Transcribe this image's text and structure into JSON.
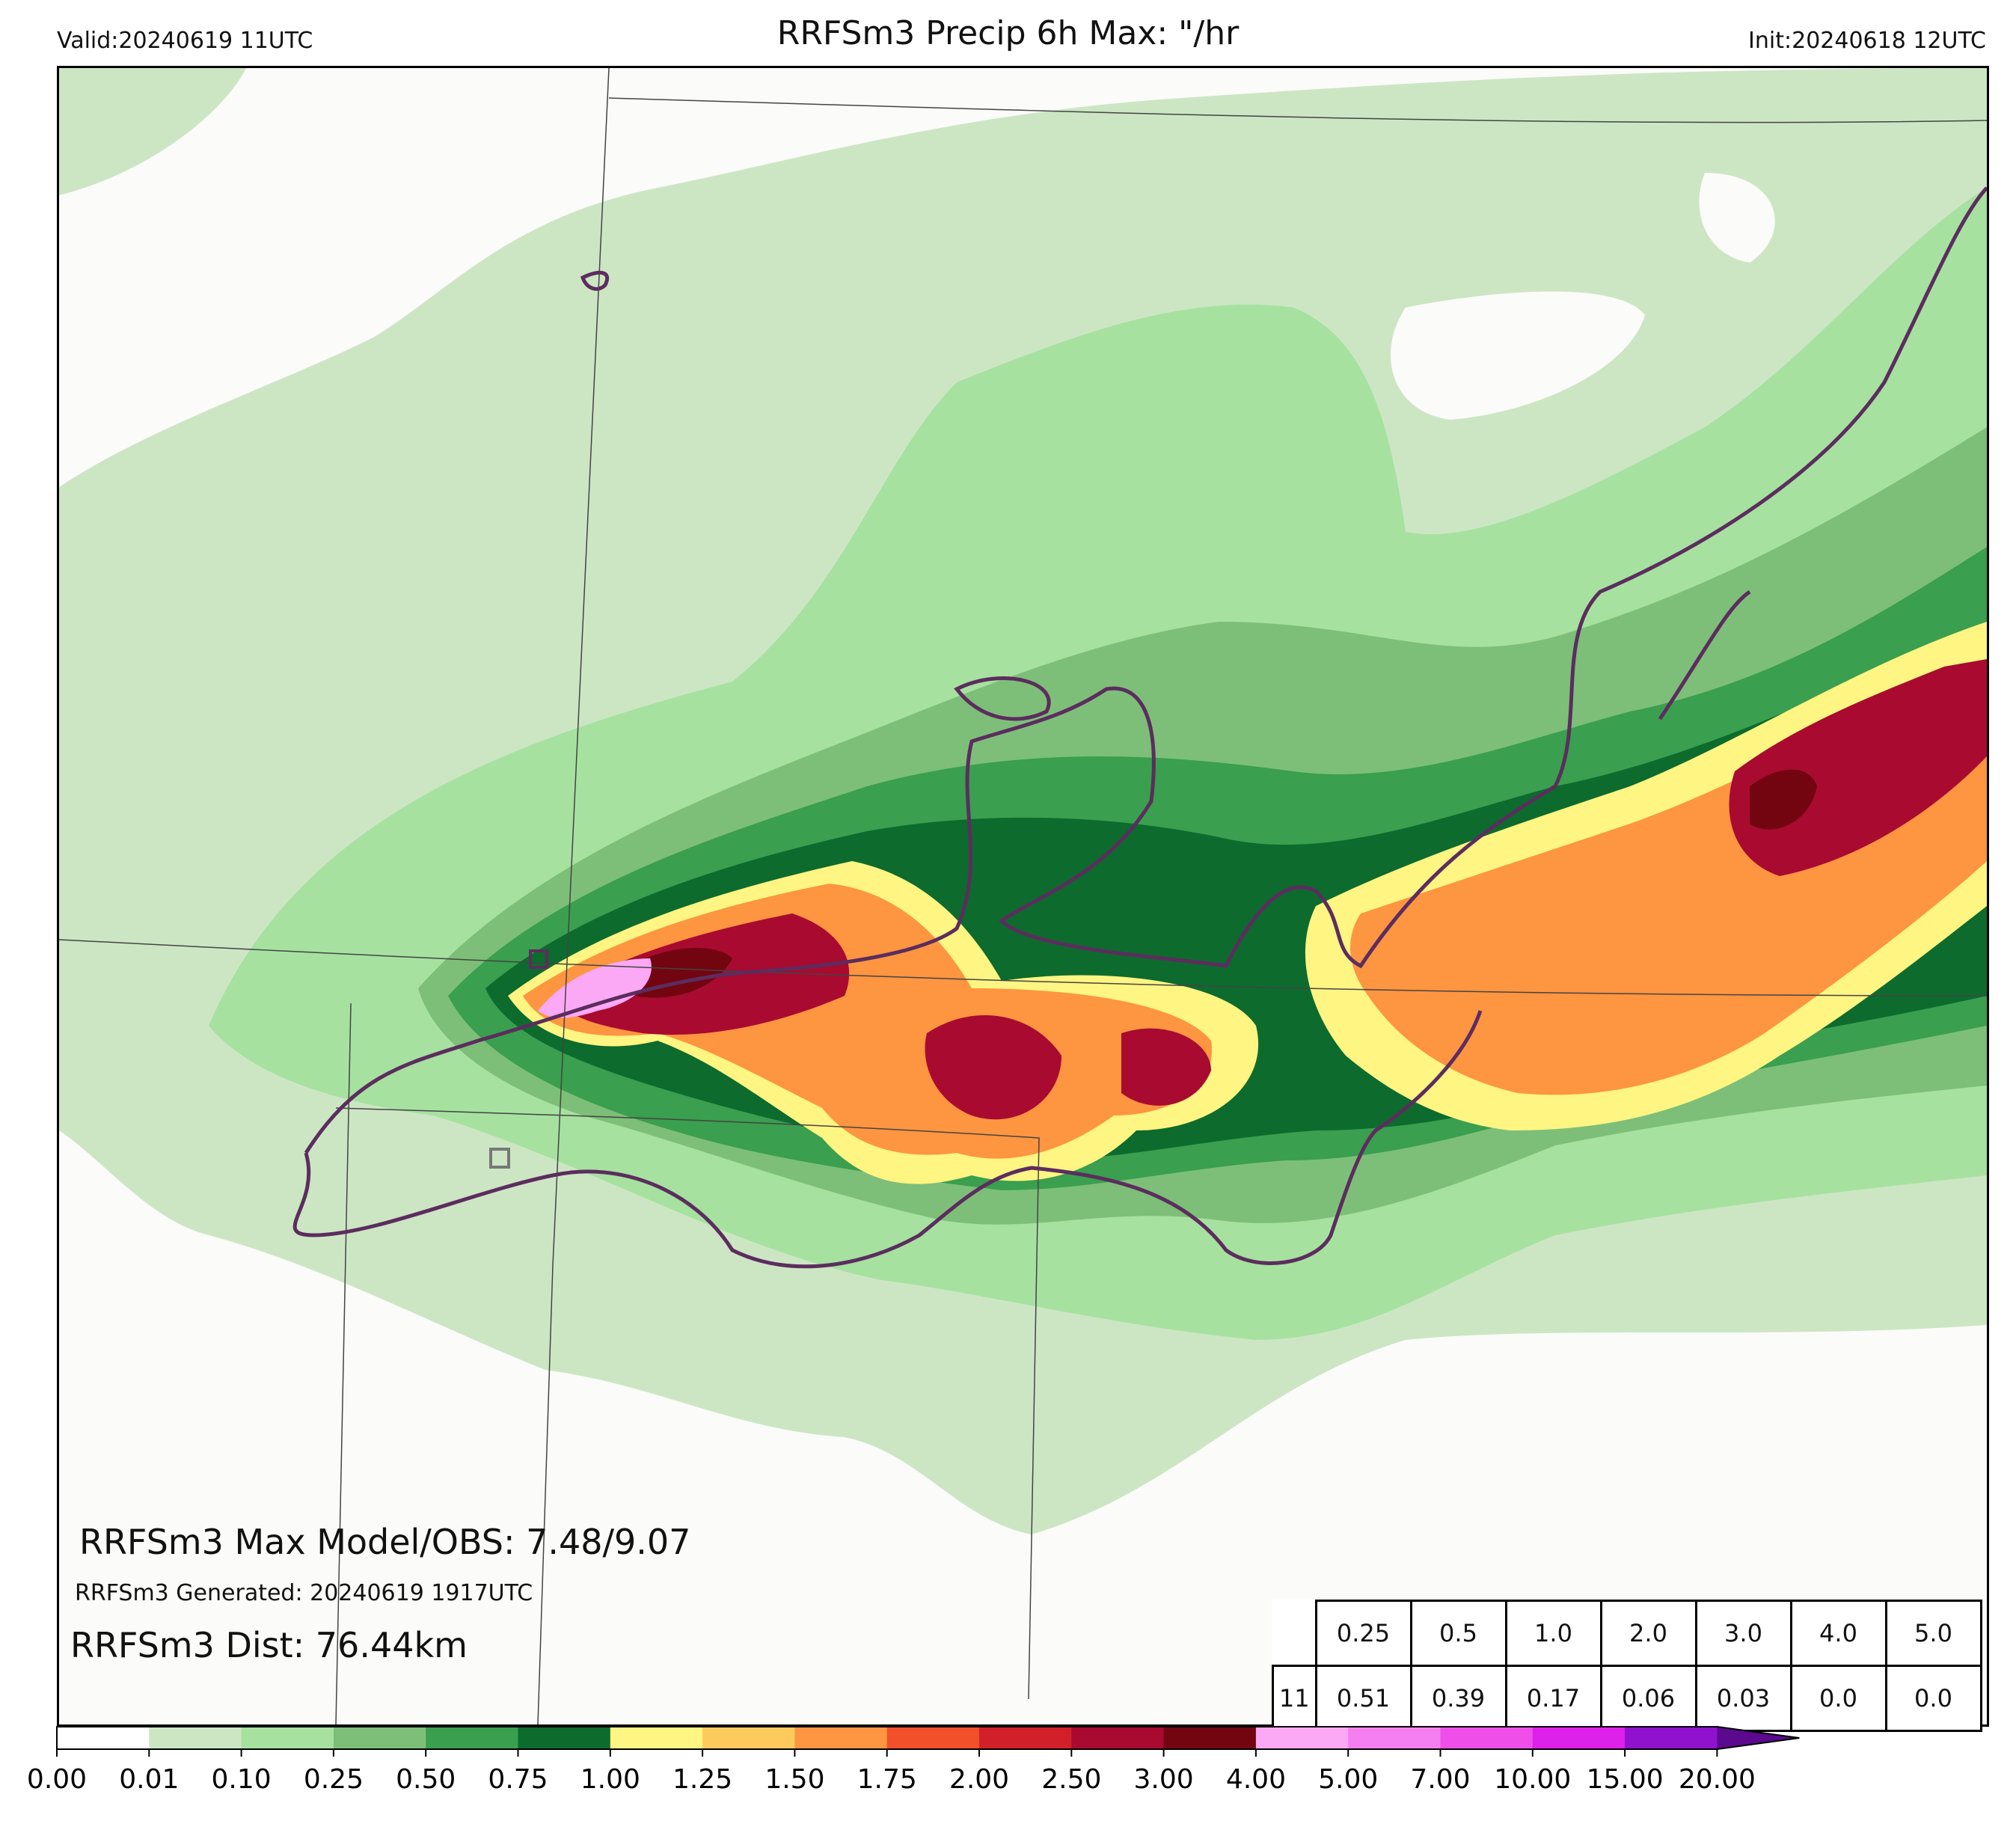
{
  "header": {
    "title": "RRFSm3 Precip 6h Max: \"/hr",
    "valid": "Valid:20240619 11UTC",
    "init": "Init:20240618 12UTC"
  },
  "annotations": {
    "max_model_obs": "RRFSm3 Max Model/OBS: 7.48/9.07",
    "generated": "RRFSm3 Generated: 20240619 1917UTC",
    "dist": "RRFSm3 Dist: 76.44km"
  },
  "stats_table": {
    "thresholds": [
      "0.25",
      "0.5",
      "1.0",
      "2.0",
      "3.0",
      "4.0",
      "5.0"
    ],
    "hour": "11",
    "values": [
      "0.51",
      "0.39",
      "0.17",
      "0.06",
      "0.03",
      "0.0",
      "0.0"
    ]
  },
  "colorbar": {
    "ticks": [
      "0.00",
      "0.01",
      "0.10",
      "0.25",
      "0.50",
      "0.75",
      "1.00",
      "1.25",
      "1.50",
      "1.75",
      "2.00",
      "2.50",
      "3.00",
      "4.00",
      "5.00",
      "7.00",
      "10.00",
      "15.00",
      "20.00"
    ],
    "colors": [
      "#ffffff",
      "#cce6c4",
      "#a6e1a0",
      "#7dbf78",
      "#3a9f4e",
      "#0d6b2e",
      "#fff582",
      "#fdcb5c",
      "#fd9541",
      "#f24f2b",
      "#d1202a",
      "#a90a30",
      "#720510",
      "#fca9f5",
      "#f57ff0",
      "#ef4fe8",
      "#dd20ea",
      "#9012cf"
    ],
    "extend_color": "#5b0a8f"
  },
  "map_layers": {
    "precip_palette": [
      "#cce6c4",
      "#a6e1a0",
      "#7dbf78",
      "#3a9f4e",
      "#0d6b2e",
      "#fff582",
      "#fdcb5c",
      "#fd9541",
      "#f24f2b",
      "#d1202a",
      "#a90a30",
      "#720510",
      "#fca9f5"
    ],
    "obs_contour_color": "#5c2d5e"
  }
}
